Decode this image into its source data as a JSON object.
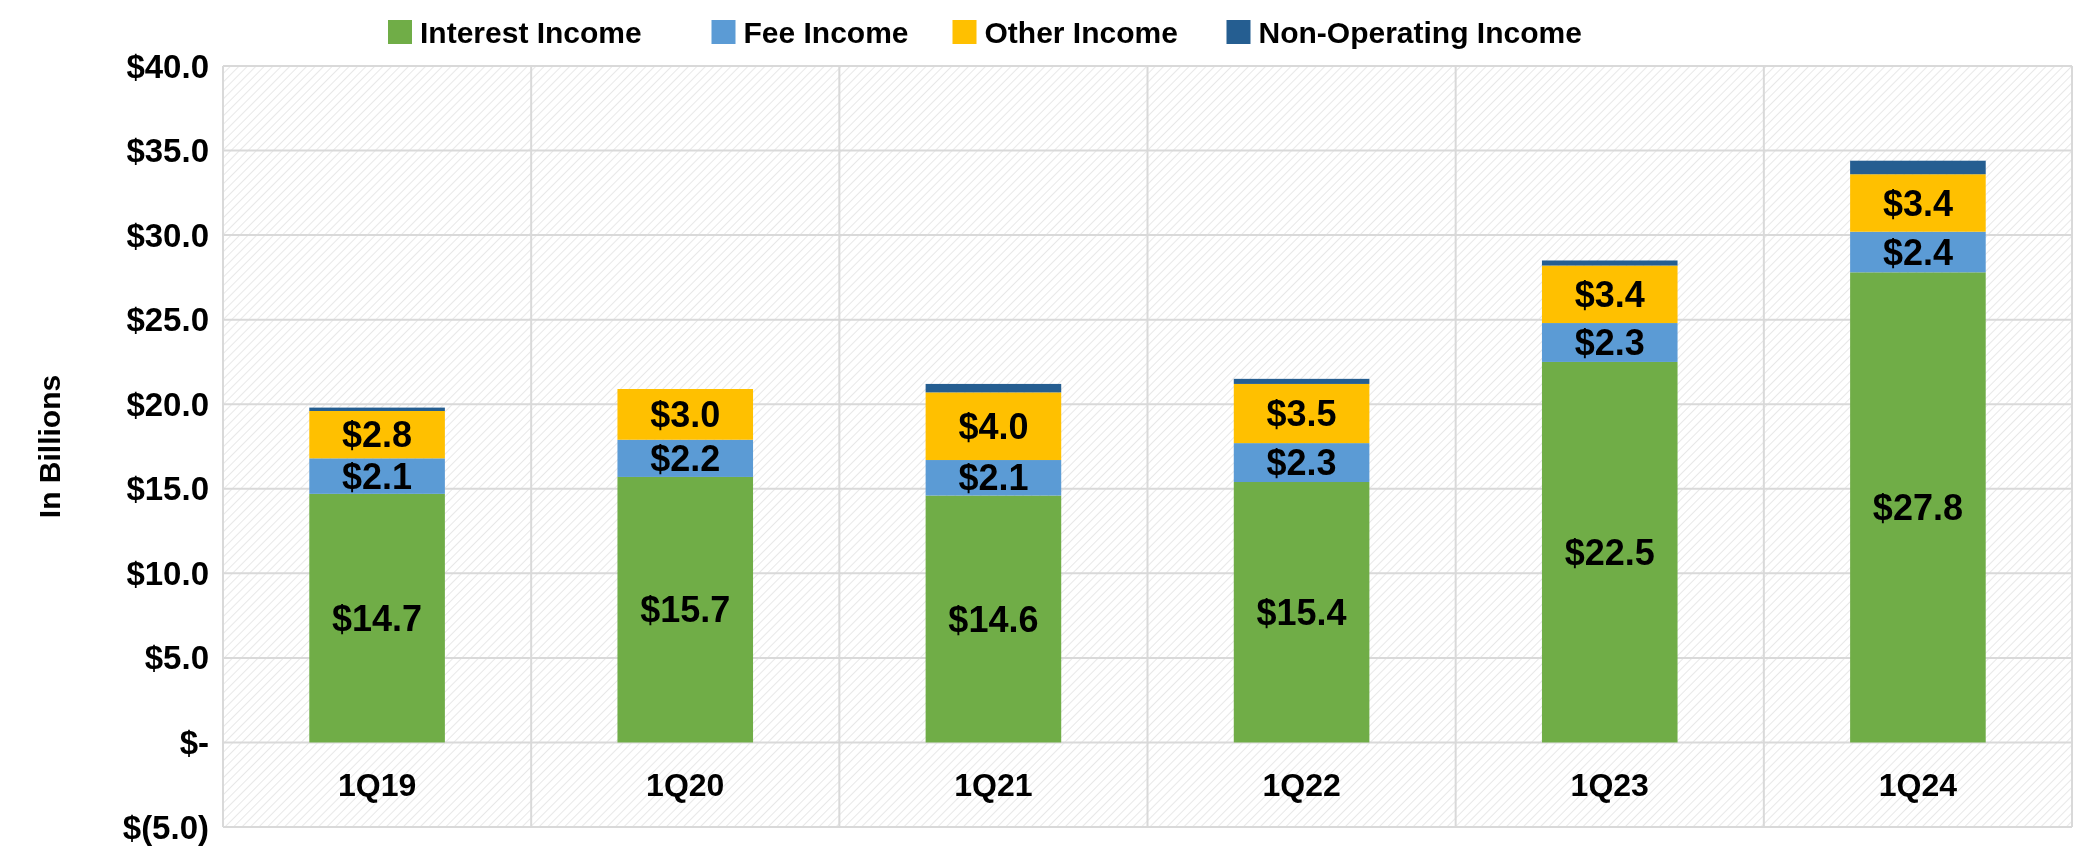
{
  "chart_data": {
    "type": "bar",
    "stacked": true,
    "ylabel": "In Billions",
    "categories": [
      "1Q19",
      "1Q20",
      "1Q21",
      "1Q22",
      "1Q23",
      "1Q24"
    ],
    "series": [
      {
        "name": "Interest Income",
        "color": "#70ad47",
        "values": [
          14.7,
          15.7,
          14.6,
          15.4,
          22.5,
          27.8
        ],
        "value_labels": [
          "$14.7",
          "$15.7",
          "$14.6",
          "$15.4",
          "$22.5",
          "$27.8"
        ]
      },
      {
        "name": "Fee Income",
        "color": "#5b9bd5",
        "values": [
          2.1,
          2.2,
          2.1,
          2.3,
          2.3,
          2.4
        ],
        "value_labels": [
          "$2.1",
          "$2.2",
          "$2.1",
          "$2.3",
          "$2.3",
          "$2.4"
        ]
      },
      {
        "name": "Other Income",
        "color": "#ffc000",
        "values": [
          2.8,
          3.0,
          4.0,
          3.5,
          3.4,
          3.4
        ],
        "value_labels": [
          "$2.8",
          "$3.0",
          "$4.0",
          "$3.5",
          "$3.4",
          "$3.4"
        ]
      },
      {
        "name": "Non-Operating Income",
        "color": "#255e91",
        "values": [
          0.2,
          0,
          0.5,
          0.3,
          0.3,
          0.8
        ]
      }
    ],
    "ylim": [
      -5,
      40
    ],
    "yticks": [
      {
        "value": -5,
        "label": "$(5.0)"
      },
      {
        "value": 0,
        "label": "$-"
      },
      {
        "value": 5,
        "label": "$5.0"
      },
      {
        "value": 10,
        "label": "$10.0"
      },
      {
        "value": 15,
        "label": "$15.0"
      },
      {
        "value": 20,
        "label": "$20.0"
      },
      {
        "value": 25,
        "label": "$25.0"
      },
      {
        "value": 30,
        "label": "$30.0"
      },
      {
        "value": 35,
        "label": "$35.0"
      },
      {
        "value": 40,
        "label": "$40.0"
      }
    ],
    "grid": true,
    "legend": "top"
  }
}
